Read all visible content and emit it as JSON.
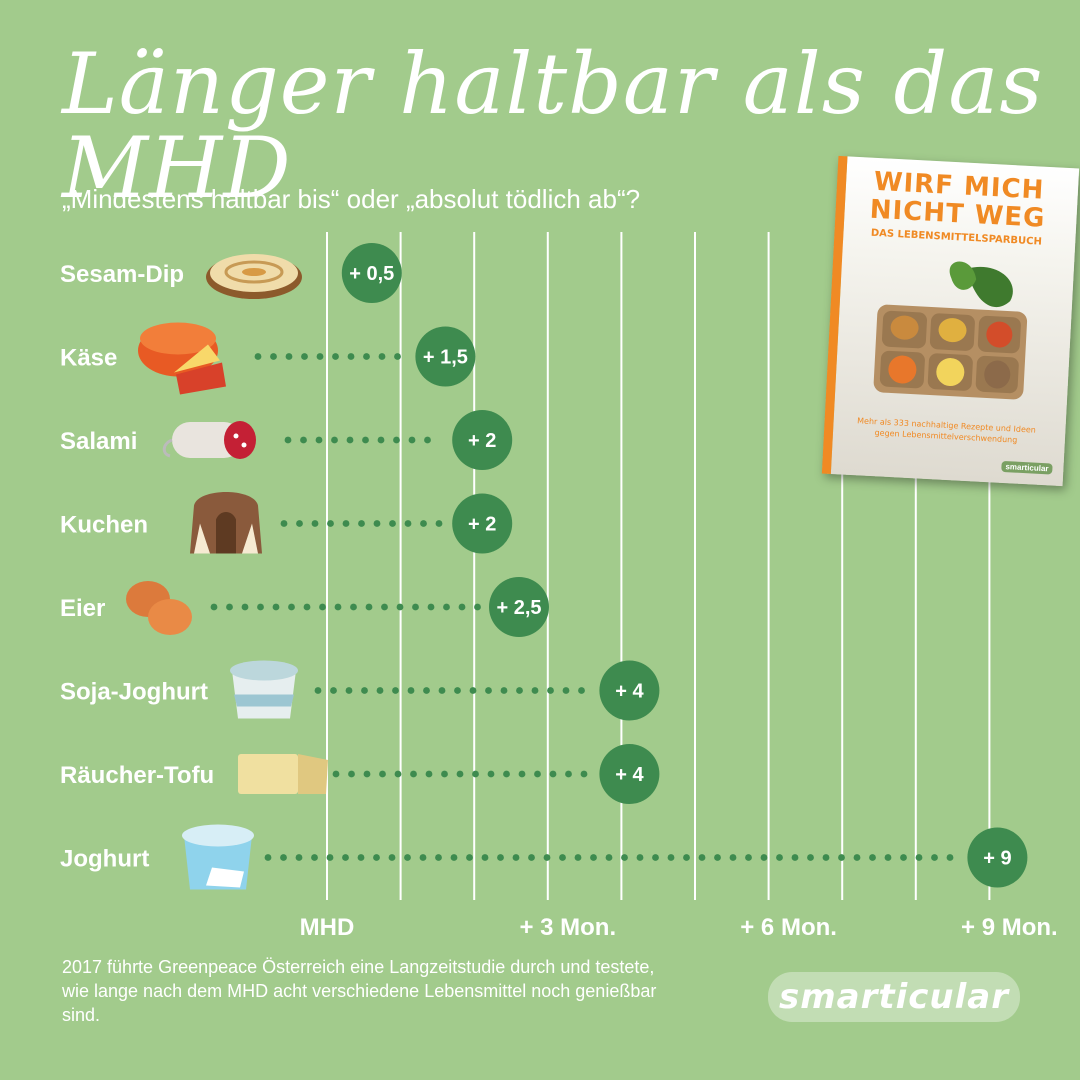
{
  "title": "Länger haltbar als das MHD",
  "subtitle": "„Mindestens haltbar bis“ oder „absolut tödlich ab“?",
  "footnote": "2017 führte Greenpeace Österreich eine Langzeitstudie durch und testete, wie lange nach dem MHD acht verschiedene Lebensmittel noch genießbar sind.",
  "logo": "smarticular",
  "book": {
    "title_line1": "WIRF MICH",
    "title_line2": "NICHT WEG",
    "subtitle": "DAS LEBENSMITTELSPARBUCH",
    "blurb": "Mehr als 333 nachhaltige Rezepte und Ideen gegen Lebensmittelverschwendung",
    "brand": "smarticular"
  },
  "colors": {
    "background": "#a2cb8c",
    "bubble": "#3e8b4f",
    "dots": "#3e8b4f",
    "gridline": "#ffffff",
    "mhd_label": "#3e8b4f",
    "text": "#ffffff",
    "book_accent": "#f08a24"
  },
  "chart_data": {
    "type": "scatter",
    "orientation": "horizontal",
    "unit": "Monate",
    "categories": [
      "Sesam-Dip",
      "Käse",
      "Salami",
      "Kuchen",
      "Eier",
      "Soja-Joghurt",
      "Räucher-Tofu",
      "Joghurt"
    ],
    "icons": [
      "hummus-icon",
      "cheese-icon",
      "salami-icon",
      "cake-icon",
      "eggs-icon",
      "soy-yogurt-icon",
      "tofu-icon",
      "yogurt-icon"
    ],
    "values": [
      0.5,
      1.5,
      2,
      2,
      2.5,
      4,
      4,
      9
    ],
    "value_labels": [
      "+ 0,5",
      "+ 1,5",
      "+ 2",
      "+ 2",
      "+ 2,5",
      "+ 4",
      "+ 4",
      "+ 9"
    ],
    "x_ticks": [
      0,
      3,
      6,
      9
    ],
    "x_tick_labels": [
      "MHD",
      "+ 3 Mon.",
      "+ 6 Mon.",
      "+ 9 Mon."
    ],
    "xlim": [
      0,
      9
    ],
    "grid": "vertical, every month"
  }
}
